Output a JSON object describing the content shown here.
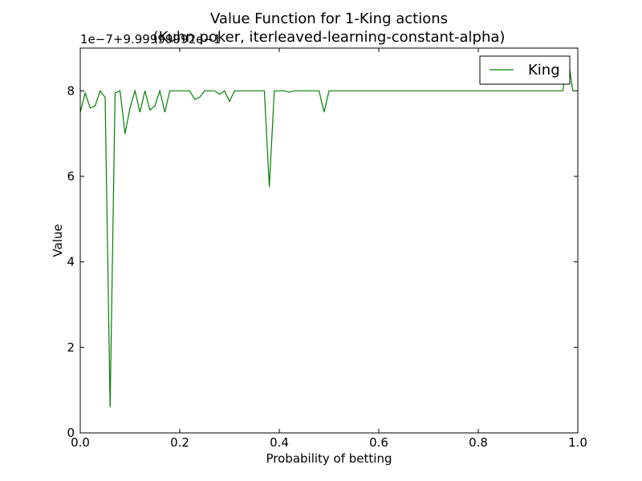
{
  "chart_data": {
    "type": "line",
    "title": "Value Function for 1-King actions",
    "subtitle": "(Kuhn poker, iterleaved-learning-constant-alpha)",
    "xlabel": "Probability of betting",
    "ylabel": "Value",
    "offset_text": "1e−7+9.99999992e−1",
    "xlim": [
      0.0,
      1.0
    ],
    "ylim": [
      0,
      9
    ],
    "x_ticks": [
      0.0,
      0.2,
      0.4,
      0.6,
      0.8,
      1.0
    ],
    "x_tick_labels": [
      "0.0",
      "0.2",
      "0.4",
      "0.6",
      "0.8",
      "1.0"
    ],
    "y_ticks": [
      0,
      2,
      4,
      6,
      8
    ],
    "y_tick_labels": [
      "0",
      "2",
      "4",
      "6",
      "8"
    ],
    "grid": false,
    "legend_position": "top-right",
    "series": [
      {
        "name": "King",
        "color": "#008000",
        "x": [
          0.0,
          0.01,
          0.02,
          0.03,
          0.04,
          0.05,
          0.06,
          0.07,
          0.08,
          0.09,
          0.1,
          0.11,
          0.12,
          0.13,
          0.14,
          0.15,
          0.16,
          0.17,
          0.18,
          0.19,
          0.2,
          0.21,
          0.22,
          0.23,
          0.24,
          0.25,
          0.26,
          0.27,
          0.28,
          0.29,
          0.3,
          0.31,
          0.32,
          0.33,
          0.34,
          0.35,
          0.36,
          0.37,
          0.38,
          0.39,
          0.4,
          0.41,
          0.42,
          0.43,
          0.44,
          0.45,
          0.46,
          0.47,
          0.48,
          0.49,
          0.5,
          0.55,
          0.6,
          0.65,
          0.7,
          0.75,
          0.8,
          0.85,
          0.9,
          0.95,
          0.97,
          0.98,
          0.99,
          1.0
        ],
        "values": [
          7.5,
          7.95,
          7.6,
          7.65,
          8.0,
          7.85,
          0.6,
          7.95,
          8.0,
          7.0,
          7.6,
          8.0,
          7.5,
          8.0,
          7.55,
          7.65,
          8.0,
          7.5,
          8.0,
          8.0,
          8.0,
          8.0,
          8.0,
          7.8,
          7.85,
          8.0,
          8.0,
          8.0,
          7.92,
          8.0,
          7.75,
          8.0,
          8.0,
          8.0,
          8.0,
          8.0,
          8.0,
          8.0,
          5.75,
          8.0,
          8.0,
          8.0,
          7.97,
          8.0,
          8.0,
          8.0,
          8.0,
          8.0,
          8.0,
          7.5,
          8.0,
          8.0,
          8.0,
          8.0,
          8.0,
          8.0,
          8.0,
          8.0,
          8.0,
          8.0,
          8.0,
          8.8,
          8.0,
          8.0
        ]
      }
    ]
  }
}
